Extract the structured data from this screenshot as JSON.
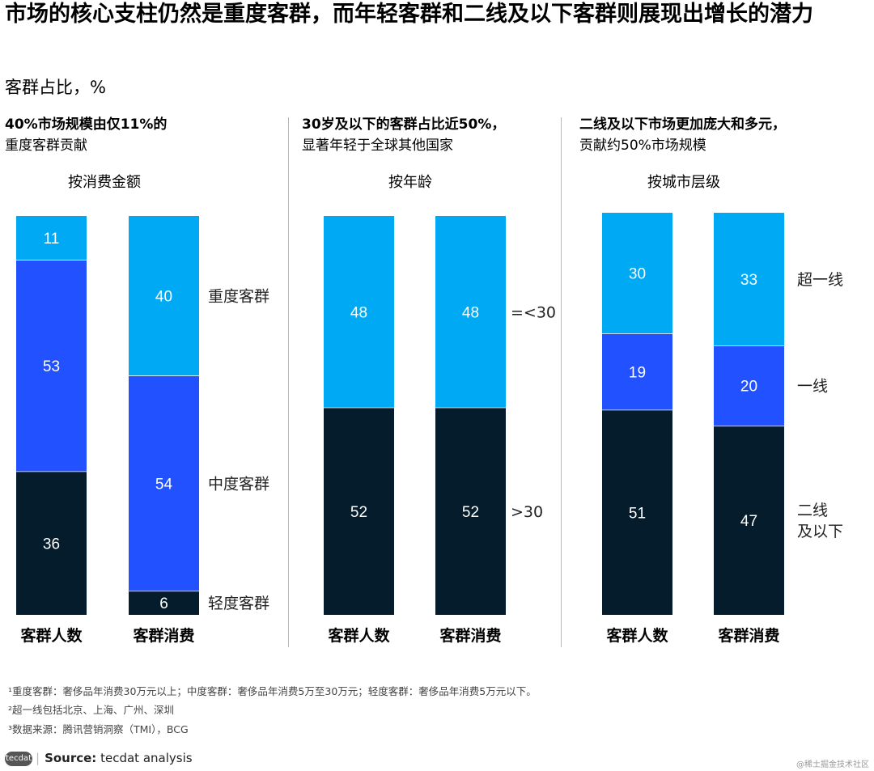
{
  "title": "市场的核心支柱仍然是重度客群，而年轻客群和二线及以下客群则展现出增长的潜力",
  "subtitle": "客群占比，%",
  "colors": {
    "light": "#00A9F4",
    "mid": "#2251FF",
    "dark": "#051C2C",
    "divider": "#B8B8B8"
  },
  "panels": [
    {
      "heading_bold": "40%市场规模由仅11%的",
      "heading_normal": "重度客群贡献",
      "sub": "按消费金额"
    },
    {
      "heading_bold": "30岁及以下的客群占比近50%，",
      "heading_normal": "显著年轻于全球其他国家",
      "sub": "按年龄"
    },
    {
      "heading_bold": "二线及以下市场更加庞大和多元，",
      "heading_normal": "贡献约50%市场规模",
      "sub": "按城市层级"
    }
  ],
  "chart_data": [
    {
      "type": "bar",
      "stacked": true,
      "ylim": [
        0,
        100
      ],
      "categories": [
        "客群人数",
        "客群消费"
      ],
      "series": [
        {
          "name": "轻度客群",
          "color": "dark",
          "values": [
            36,
            6
          ]
        },
        {
          "name": "中度客群",
          "color": "mid",
          "values": [
            53,
            54
          ]
        },
        {
          "name": "重度客群",
          "color": "light",
          "values": [
            11,
            40
          ]
        }
      ]
    },
    {
      "type": "bar",
      "stacked": true,
      "ylim": [
        0,
        100
      ],
      "categories": [
        "客群人数",
        "客群消费"
      ],
      "series": [
        {
          "name": ">30",
          "color": "dark",
          "values": [
            52,
            52
          ]
        },
        {
          "name": "=<30",
          "color": "light",
          "values": [
            48,
            48
          ]
        }
      ]
    },
    {
      "type": "bar",
      "stacked": true,
      "ylim": [
        0,
        100
      ],
      "categories": [
        "客群人数",
        "客群消费"
      ],
      "series": [
        {
          "name": "二线\n及以下",
          "color": "dark",
          "values": [
            51,
            47
          ]
        },
        {
          "name": "一线",
          "color": "mid",
          "values": [
            19,
            20
          ]
        },
        {
          "name": "超一线",
          "color": "light",
          "values": [
            30,
            33
          ]
        }
      ]
    }
  ],
  "footnotes": [
    "¹重度客群：奢侈品年消费30万元以上；中度客群：奢侈品年消费5万至30万元；轻度客群：奢侈品年消费5万元以下。",
    "²超一线包括北京、上海、广州、深圳",
    "³数据来源：腾讯营销洞察（TMI），BCG"
  ],
  "source": {
    "logo": "tecdat",
    "label": "Source:",
    "text": "tecdat analysis"
  },
  "watermark": "@稀土掘金技术社区"
}
